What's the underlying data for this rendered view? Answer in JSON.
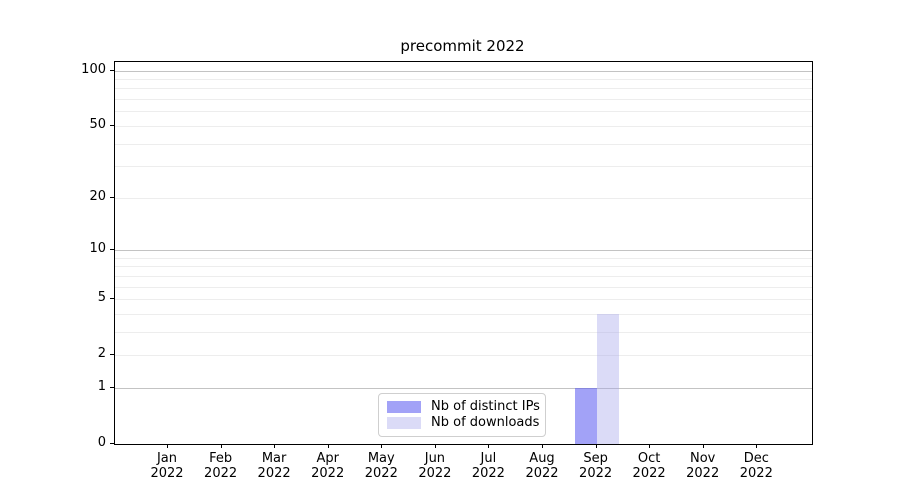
{
  "chart_data": {
    "type": "bar",
    "title": "precommit 2022",
    "categories": [
      "Jan",
      "Feb",
      "Mar",
      "Apr",
      "May",
      "Jun",
      "Jul",
      "Aug",
      "Sep",
      "Oct",
      "Nov",
      "Dec"
    ],
    "year_label": "2022",
    "series": [
      {
        "name": "Nb of distinct IPs",
        "color": "#a8a8f6",
        "fill": "rgba(85,85,240,0.55)",
        "values": [
          0,
          0,
          0,
          0,
          0,
          0,
          0,
          0,
          1,
          0,
          0,
          0
        ]
      },
      {
        "name": "Nb of downloads",
        "color": "#dcdcf8",
        "fill": "rgba(160,160,235,0.38)",
        "values": [
          0,
          0,
          0,
          0,
          0,
          0,
          0,
          0,
          4,
          0,
          0,
          0
        ]
      }
    ],
    "yscale": "log10(1+y)",
    "ylim": [
      0,
      111
    ],
    "y_tick_values": [
      0,
      1,
      2,
      5,
      10,
      20,
      50,
      100
    ],
    "y_tick_labels": [
      "0",
      "1",
      "2",
      "5",
      "10",
      "20",
      "50",
      "100"
    ],
    "y_major_gridlines": [
      1,
      10,
      100
    ],
    "y_minor_gridlines": [
      2,
      3,
      4,
      5,
      6,
      7,
      8,
      9,
      20,
      30,
      40,
      50,
      60,
      70,
      80,
      90
    ],
    "grid": "horizontal",
    "legend_position": "lower center",
    "axis_color": "#000000",
    "major_grid_color": "#c3c3c3",
    "minor_grid_color": "#ededed"
  }
}
